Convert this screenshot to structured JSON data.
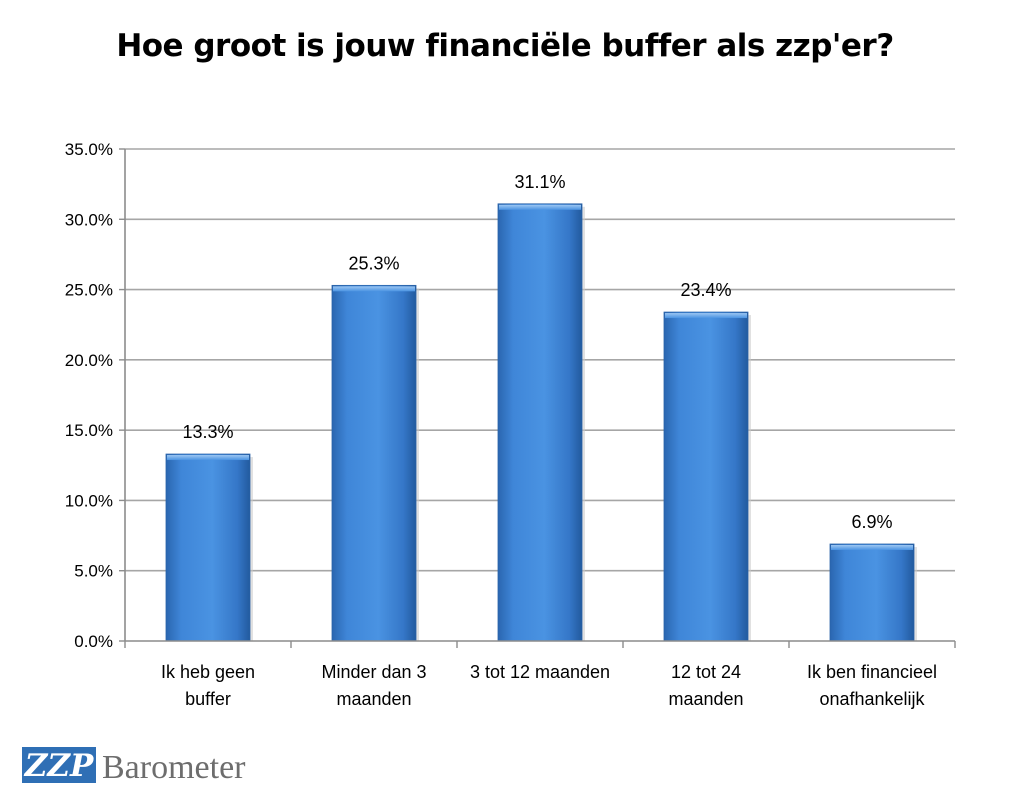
{
  "chart_data": {
    "type": "bar",
    "title": "Hoe groot is jouw financiële buffer als zzp'er?",
    "categories": [
      [
        "Ik heb geen",
        "buffer"
      ],
      [
        "Minder dan 3",
        "maanden"
      ],
      [
        "3 tot 12 maanden"
      ],
      [
        "12 tot 24",
        "maanden"
      ],
      [
        "Ik ben financieel",
        "onafhankelijk"
      ]
    ],
    "values": [
      13.3,
      25.3,
      31.1,
      23.4,
      6.9
    ],
    "value_labels": [
      "13.3%",
      "25.3%",
      "31.1%",
      "23.4%",
      "6.9%"
    ],
    "yticks": [
      "0.0%",
      "5.0%",
      "10.0%",
      "15.0%",
      "20.0%",
      "25.0%",
      "30.0%",
      "35.0%"
    ],
    "ylim": [
      0,
      35
    ],
    "xlabel": "",
    "ylabel": "",
    "grid": true,
    "bar_color": "#3a7fd1"
  },
  "logo": {
    "mark": "ZZP",
    "text": "Barometer",
    "color": "#2f6fb5"
  }
}
